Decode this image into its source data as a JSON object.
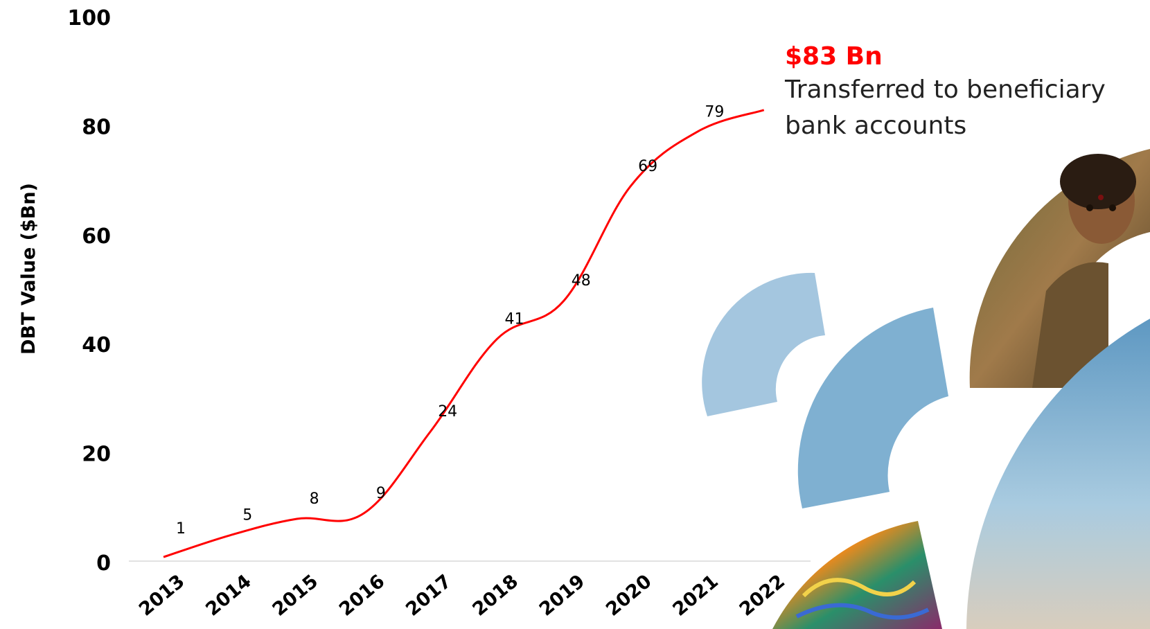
{
  "chart_data": {
    "type": "line",
    "categories": [
      "2013",
      "2014",
      "2015",
      "2016",
      "2017",
      "2018",
      "2019",
      "2020",
      "2021",
      "2022"
    ],
    "series": [
      {
        "values": [
          1,
          5,
          8,
          9,
          24,
          41,
          48,
          69,
          79,
          83
        ],
        "color": "#ff0000"
      }
    ],
    "data_labels": [
      "1",
      "5",
      "8",
      "9",
      "24",
      "41",
      "48",
      "69",
      "79"
    ],
    "yticks": [
      "0",
      "20",
      "40",
      "60",
      "80",
      "100"
    ],
    "ylabel": "DBT Value ($Bn)",
    "xlabel": "",
    "ylim": [
      0,
      100
    ],
    "grid": false
  },
  "callout": {
    "value": "$83 Bn",
    "text": "Transferred to beneficiary bank accounts",
    "value_color": "#ff0000"
  },
  "decorations": {
    "photos": [
      "girl-portrait-photo",
      "colorful-textile-photo",
      "sky-landscape-photo"
    ],
    "shape_colors": [
      "#a4c6df",
      "#7fb0d1"
    ]
  }
}
